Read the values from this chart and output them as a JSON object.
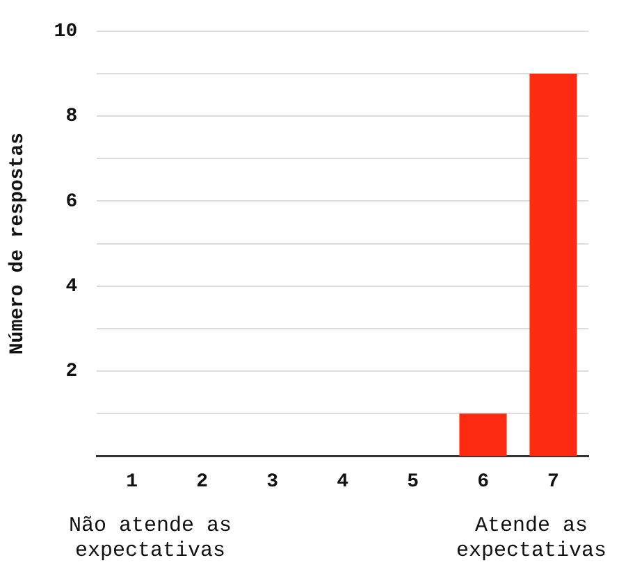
{
  "chart_data": {
    "type": "bar",
    "ylabel": "Número de respostas",
    "categories": [
      "1",
      "2",
      "3",
      "4",
      "5",
      "6",
      "7"
    ],
    "values": [
      0,
      0,
      0,
      0,
      0,
      1,
      9
    ],
    "color": "#ff2a12",
    "ylim": [
      0,
      10
    ],
    "yticks": [
      {
        "value": 1,
        "label": null
      },
      2,
      {
        "value": 3,
        "label": null
      },
      4,
      {
        "value": 5,
        "label": null
      },
      6,
      {
        "value": 7,
        "label": null
      },
      8,
      {
        "value": 9,
        "label": null
      },
      10
    ],
    "grid": "y",
    "legend": false,
    "annotations": [
      "Não atende as expectativas",
      "Atende as expectativas"
    ]
  }
}
